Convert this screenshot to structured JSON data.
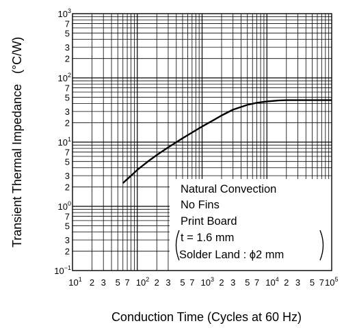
{
  "chart_data": {
    "type": "line",
    "xlabel": "Conduction Time (Cycles at 60 Hz)",
    "ylabel": "Transient Thermal Impedance",
    "yunit": "(°C/W)",
    "x_scale": "log",
    "y_scale": "log",
    "xlim": [
      10,
      100000
    ],
    "ylim": [
      0.1,
      1000
    ],
    "grid": true,
    "x_ticks": [
      {
        "b": "10",
        "e": "1"
      },
      {
        "b": "2"
      },
      {
        "b": "3"
      },
      {
        "b": "5"
      },
      {
        "b": "7"
      },
      {
        "b": "10",
        "e": "2"
      },
      {
        "b": "2"
      },
      {
        "b": "3"
      },
      {
        "b": "5"
      },
      {
        "b": "7"
      },
      {
        "b": "10",
        "e": "3"
      },
      {
        "b": "2"
      },
      {
        "b": "3"
      },
      {
        "b": "5"
      },
      {
        "b": "7"
      },
      {
        "b": "10",
        "e": "4"
      },
      {
        "b": "2"
      },
      {
        "b": "3"
      },
      {
        "b": "5"
      },
      {
        "b": "7"
      },
      {
        "b": "10",
        "e": "5"
      }
    ],
    "y_ticks": [
      {
        "b": "10",
        "e": "−1"
      },
      {
        "b": "2"
      },
      {
        "b": "3"
      },
      {
        "b": "5"
      },
      {
        "b": "7"
      },
      {
        "b": "10",
        "e": "0"
      },
      {
        "b": "2"
      },
      {
        "b": "3"
      },
      {
        "b": "5"
      },
      {
        "b": "7"
      },
      {
        "b": "10",
        "e": "1"
      },
      {
        "b": "2"
      },
      {
        "b": "3"
      },
      {
        "b": "5"
      },
      {
        "b": "7"
      },
      {
        "b": "10",
        "e": "2"
      },
      {
        "b": "2"
      },
      {
        "b": "3"
      },
      {
        "b": "5"
      },
      {
        "b": "7"
      },
      {
        "b": "10",
        "e": "3"
      }
    ],
    "series": [
      {
        "x": [
          60,
          80,
          100,
          150,
          200,
          300,
          500,
          700,
          1000,
          1500,
          2000,
          3000,
          5000,
          7000,
          10000,
          15000,
          20000,
          30000,
          50000,
          100000
        ],
        "y": [
          2.3,
          3.0,
          3.7,
          5.1,
          6.3,
          8.3,
          11.5,
          14.1,
          17.5,
          22,
          26,
          32,
          38,
          41,
          43,
          44.5,
          45,
          45,
          45,
          45
        ]
      }
    ],
    "annotations": {
      "lines": [
        "Natural Convection",
        "No Fins",
        "Print Board",
        "t = 1.6 mm",
        "Solder Land : ϕ2 mm"
      ]
    }
  }
}
